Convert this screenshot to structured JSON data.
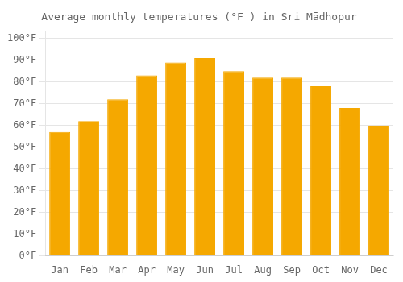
{
  "chart_data": {
    "type": "bar",
    "title": "Average monthly temperatures (°F ) in Sri Mādhopur",
    "categories": [
      "Jan",
      "Feb",
      "Mar",
      "Apr",
      "May",
      "Jun",
      "Jul",
      "Aug",
      "Sep",
      "Oct",
      "Nov",
      "Dec"
    ],
    "values": [
      57,
      62,
      72,
      83,
      89,
      91,
      85,
      82,
      82,
      78,
      68,
      60
    ],
    "color": "#F5A800",
    "ylim": [
      0,
      103
    ],
    "yticks": [
      {
        "value": 0,
        "label": "0°F"
      },
      {
        "value": 10,
        "label": "10°F"
      },
      {
        "value": 20,
        "label": "20°F"
      },
      {
        "value": 30,
        "label": "30°F"
      },
      {
        "value": 40,
        "label": "40°F"
      },
      {
        "value": 50,
        "label": "50°F"
      },
      {
        "value": 60,
        "label": "60°F"
      },
      {
        "value": 70,
        "label": "70°F"
      },
      {
        "value": 80,
        "label": "80°F"
      },
      {
        "value": 90,
        "label": "90°F"
      },
      {
        "value": 100,
        "label": "100°F"
      }
    ],
    "grid": true
  }
}
